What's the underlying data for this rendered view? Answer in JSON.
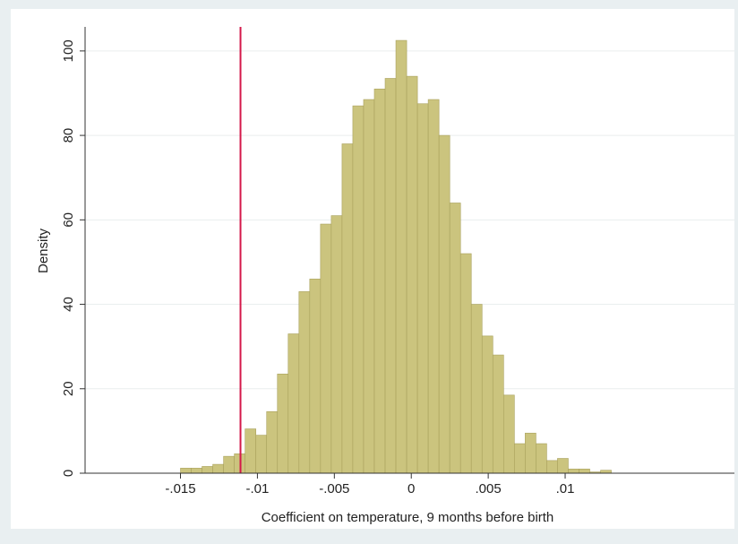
{
  "chart_data": {
    "type": "histogram",
    "xlabel": "Coefficient on temperature, 9 months before birth",
    "ylabel": "Density",
    "bins": [
      -0.015,
      -0.0143,
      -0.0136,
      -0.0129,
      -0.0122,
      -0.0115,
      -0.0108,
      -0.0101,
      -0.0094,
      -0.0087,
      -0.008,
      -0.0073,
      -0.0066,
      -0.0059,
      -0.0052,
      -0.0045,
      -0.0038,
      -0.0031,
      -0.0024,
      -0.0017,
      -0.001,
      -0.0003,
      0.0004,
      0.0011,
      0.0018,
      0.0025,
      0.0032,
      0.0039,
      0.0046,
      0.0053,
      0.006,
      0.0067,
      0.0074,
      0.0081,
      0.0088,
      0.0095,
      0.0102,
      0.0109,
      0.0116,
      0.0123,
      0.013
    ],
    "values": [
      1.2,
      1.2,
      1.6,
      2.1,
      4.0,
      4.6,
      10.5,
      9.0,
      14.6,
      23.5,
      33,
      43,
      46,
      59,
      61,
      78,
      87,
      88.5,
      91,
      93.5,
      102.5,
      94,
      87.5,
      88.5,
      80,
      64,
      52,
      40,
      32.5,
      28,
      18.5,
      7,
      9.5,
      7,
      3,
      3.5,
      1,
      1,
      0.3,
      0.7
    ],
    "color": "#cbc47e",
    "edgecolor": "#a9a15c",
    "vline": {
      "x": -0.0111,
      "color": "#d4184a"
    },
    "xlim": [
      -0.0212,
      0.021
    ],
    "ylim": [
      0,
      105.7
    ],
    "xticks": [
      {
        "value": -0.015,
        "label": "-.015"
      },
      {
        "value": -0.01,
        "label": "-.01"
      },
      {
        "value": -0.005,
        "label": "-.005"
      },
      0,
      {
        "value": 0.005,
        "label": ".005"
      },
      {
        "value": 0.01,
        "label": ".01"
      }
    ],
    "yticks": [
      0,
      20,
      40,
      60,
      80,
      100
    ],
    "grid": true
  }
}
